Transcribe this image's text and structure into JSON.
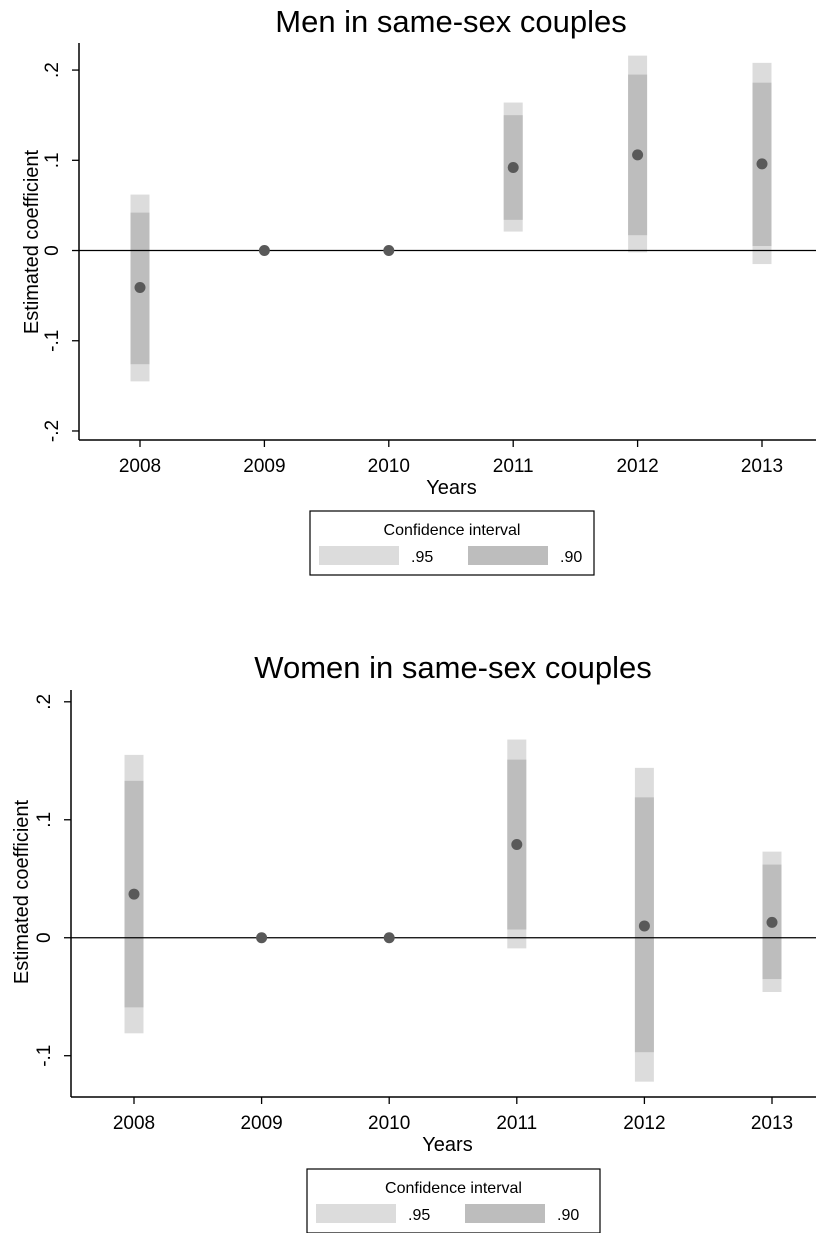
{
  "chart_data": [
    {
      "type": "errorbar",
      "title": "Men in same-sex couples",
      "xlabel": "Years",
      "ylabel": "Estimated coefficient",
      "categories": [
        "2008",
        "2009",
        "2010",
        "2011",
        "2012",
        "2013"
      ],
      "ylim": [
        -0.21,
        0.23
      ],
      "yticks": [
        -0.2,
        -0.1,
        0,
        0.1,
        0.2
      ],
      "ytick_labels": [
        "-.2",
        "-.1",
        "0",
        ".1",
        ".2"
      ],
      "reference_line": 0,
      "points": [
        -0.041,
        0.0,
        0.0,
        0.092,
        0.106,
        0.096
      ],
      "ci95": [
        [
          -0.145,
          0.062
        ],
        null,
        null,
        [
          0.021,
          0.164
        ],
        [
          -0.002,
          0.216
        ],
        [
          -0.015,
          0.208
        ]
      ],
      "ci90": [
        [
          -0.126,
          0.042
        ],
        null,
        null,
        [
          0.034,
          0.15
        ],
        [
          0.017,
          0.195
        ],
        [
          0.005,
          0.186
        ]
      ],
      "legend": {
        "title": "Confidence interval",
        "position": "bottom",
        "items": [
          {
            "label": ".95",
            "color": "#dcdcdc"
          },
          {
            "label": ".90",
            "color": "#bdbdbd"
          }
        ]
      },
      "colors": {
        "point": "#595959",
        "ci95": "#dcdcdc",
        "ci90": "#bdbdbd"
      }
    },
    {
      "type": "errorbar",
      "title": "Women in same-sex couples",
      "xlabel": "Years",
      "ylabel": "Estimated coefficient",
      "categories": [
        "2008",
        "2009",
        "2010",
        "2011",
        "2012",
        "2013"
      ],
      "ylim": [
        -0.135,
        0.21
      ],
      "yticks": [
        -0.1,
        0,
        0.1,
        0.2
      ],
      "ytick_labels": [
        "-.1",
        "0",
        ".1",
        ".2"
      ],
      "reference_line": 0,
      "points": [
        0.037,
        0.0,
        0.0,
        0.079,
        0.01,
        0.013
      ],
      "ci95": [
        [
          -0.081,
          0.155
        ],
        null,
        null,
        [
          -0.009,
          0.168
        ],
        [
          -0.122,
          0.144
        ],
        [
          -0.046,
          0.073
        ]
      ],
      "ci90": [
        [
          -0.059,
          0.133
        ],
        null,
        null,
        [
          0.007,
          0.151
        ],
        [
          -0.097,
          0.119
        ],
        [
          -0.035,
          0.062
        ]
      ],
      "legend": {
        "title": "Confidence interval",
        "position": "bottom",
        "items": [
          {
            "label": ".95",
            "color": "#dcdcdc"
          },
          {
            "label": ".90",
            "color": "#bdbdbd"
          }
        ]
      },
      "colors": {
        "point": "#595959",
        "ci95": "#dcdcdc",
        "ci90": "#bdbdbd"
      }
    }
  ]
}
